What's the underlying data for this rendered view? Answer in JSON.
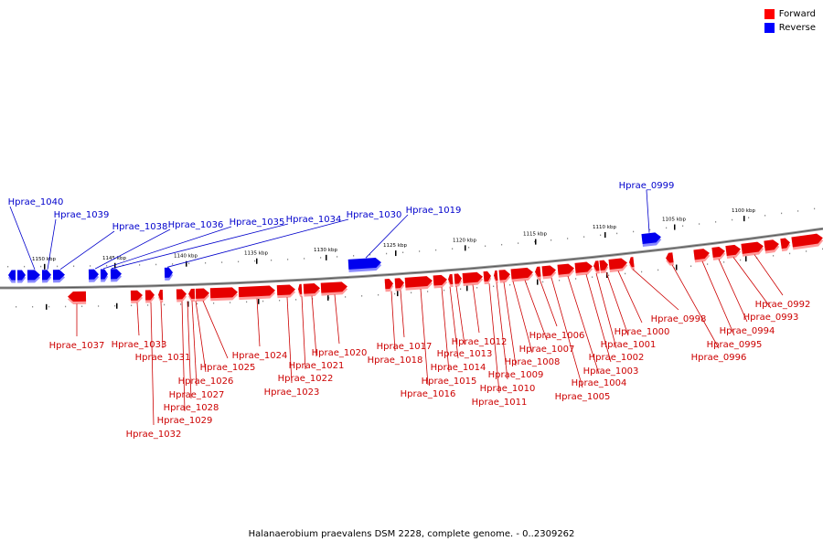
{
  "legend": {
    "forward_label": "Forward",
    "reverse_label": "Reverse",
    "forward_color": "#ff0000",
    "reverse_color": "#0000ff"
  },
  "caption": "Halanaerobium praevalens DSM 2228, complete genome. - 0..2309262",
  "colors": {
    "forward_label_text": "#cc0000",
    "reverse_label_text": "#0000cc",
    "backbone": "#888888"
  },
  "scale": {
    "unit": "kbp",
    "major_ticks": [
      1150,
      1145,
      1140,
      1135,
      1130,
      1125,
      1120,
      1115,
      1110,
      1105,
      1100
    ],
    "major_labels": [
      "1150 kbp",
      "1145 kbp",
      "1140 kbp",
      "1135 kbp",
      "1130 kbp",
      "1125 kbp",
      "1120 kbp",
      "1115 kbp",
      "1110 kbp",
      "1105 kbp",
      "1100 kbp"
    ]
  },
  "genes": {
    "reverse": [
      {
        "id": "Hprae_1040"
      },
      {
        "id": "Hprae_1039"
      },
      {
        "id": "Hprae_1038"
      },
      {
        "id": "Hprae_1036"
      },
      {
        "id": "Hprae_1035"
      },
      {
        "id": "Hprae_1034"
      },
      {
        "id": "Hprae_1030"
      },
      {
        "id": "Hprae_1019"
      },
      {
        "id": "Hprae_0999"
      }
    ],
    "forward": [
      {
        "id": "Hprae_1037"
      },
      {
        "id": "Hprae_1033"
      },
      {
        "id": "Hprae_1032"
      },
      {
        "id": "Hprae_1031"
      },
      {
        "id": "Hprae_1029"
      },
      {
        "id": "Hprae_1028"
      },
      {
        "id": "Hprae_1027"
      },
      {
        "id": "Hprae_1026"
      },
      {
        "id": "Hprae_1025"
      },
      {
        "id": "Hprae_1024"
      },
      {
        "id": "Hprae_1023"
      },
      {
        "id": "Hprae_1022"
      },
      {
        "id": "Hprae_1021"
      },
      {
        "id": "Hprae_1020"
      },
      {
        "id": "Hprae_1018"
      },
      {
        "id": "Hprae_1017"
      },
      {
        "id": "Hprae_1016"
      },
      {
        "id": "Hprae_1015"
      },
      {
        "id": "Hprae_1014"
      },
      {
        "id": "Hprae_1013"
      },
      {
        "id": "Hprae_1012"
      },
      {
        "id": "Hprae_1011"
      },
      {
        "id": "Hprae_1010"
      },
      {
        "id": "Hprae_1009"
      },
      {
        "id": "Hprae_1008"
      },
      {
        "id": "Hprae_1007"
      },
      {
        "id": "Hprae_1006"
      },
      {
        "id": "Hprae_1005"
      },
      {
        "id": "Hprae_1004"
      },
      {
        "id": "Hprae_1003"
      },
      {
        "id": "Hprae_1002"
      },
      {
        "id": "Hprae_1001"
      },
      {
        "id": "Hprae_1000"
      },
      {
        "id": "Hprae_0998"
      },
      {
        "id": "Hprae_0996"
      },
      {
        "id": "Hprae_0995"
      },
      {
        "id": "Hprae_0994"
      },
      {
        "id": "Hprae_0993"
      },
      {
        "id": "Hprae_0992"
      }
    ]
  }
}
